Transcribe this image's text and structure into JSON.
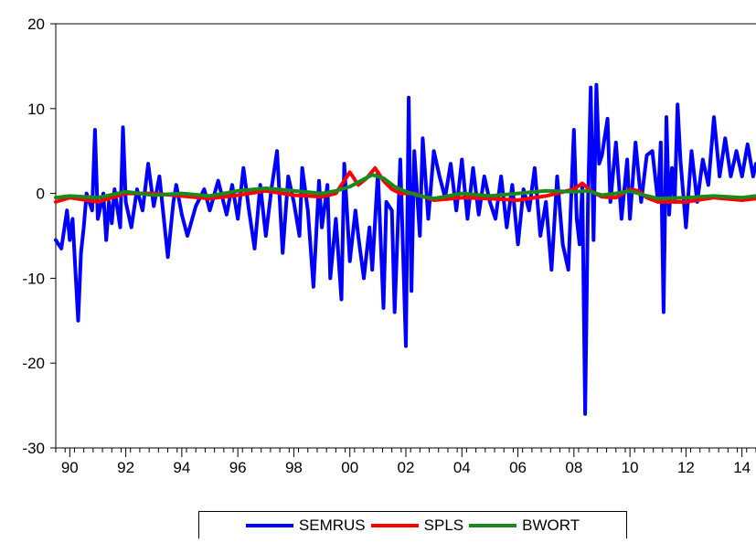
{
  "chart_data": {
    "type": "line",
    "title": "",
    "xlabel": "",
    "ylabel": "",
    "xlim": [
      1989.5,
      2014.5
    ],
    "ylim": [
      -30,
      20
    ],
    "y_ticks": [
      20,
      10,
      0,
      -10,
      -20,
      -30
    ],
    "y_tick_labels": [
      "20",
      "10",
      "0",
      "-10",
      "-20",
      "-30"
    ],
    "x_ticks": [
      1990,
      1992,
      1994,
      1996,
      1998,
      2000,
      2002,
      2004,
      2006,
      2008,
      2010,
      2012,
      2014
    ],
    "x_tick_labels": [
      "90",
      "92",
      "94",
      "96",
      "98",
      "00",
      "02",
      "04",
      "06",
      "08",
      "10",
      "12",
      "14"
    ],
    "grid": false,
    "legend_position": "bottom",
    "series": [
      {
        "name": "SEMRUS",
        "color": "#0000ff",
        "x": [
          1989.5,
          1989.7,
          1989.9,
          1990.0,
          1990.1,
          1990.3,
          1990.4,
          1990.5,
          1990.6,
          1990.8,
          1990.9,
          1991.0,
          1991.2,
          1991.3,
          1991.4,
          1991.5,
          1991.6,
          1991.8,
          1991.9,
          1992.0,
          1992.2,
          1992.4,
          1992.6,
          1992.8,
          1993.0,
          1993.2,
          1993.5,
          1993.7,
          1993.8,
          1994.0,
          1994.2,
          1994.5,
          1994.8,
          1995.0,
          1995.3,
          1995.6,
          1995.8,
          1996.0,
          1996.2,
          1996.4,
          1996.6,
          1996.8,
          1997.0,
          1997.2,
          1997.4,
          1997.6,
          1997.8,
          1998.0,
          1998.2,
          1998.3,
          1998.5,
          1998.7,
          1998.9,
          1999.0,
          1999.2,
          1999.3,
          1999.5,
          1999.7,
          1999.8,
          2000.0,
          2000.2,
          2000.3,
          2000.5,
          2000.7,
          2000.8,
          2001.0,
          2001.2,
          2001.3,
          2001.5,
          2001.6,
          2001.8,
          2002.0,
          2002.1,
          2002.2,
          2002.3,
          2002.5,
          2002.6,
          2002.8,
          2003.0,
          2003.2,
          2003.4,
          2003.6,
          2003.8,
          2004.0,
          2004.2,
          2004.4,
          2004.6,
          2004.8,
          2005.0,
          2005.2,
          2005.4,
          2005.6,
          2005.8,
          2006.0,
          2006.2,
          2006.4,
          2006.6,
          2006.8,
          2007.0,
          2007.2,
          2007.4,
          2007.6,
          2007.8,
          2008.0,
          2008.1,
          2008.2,
          2008.3,
          2008.4,
          2008.5,
          2008.6,
          2008.7,
          2008.8,
          2008.9,
          2009.0,
          2009.2,
          2009.3,
          2009.5,
          2009.7,
          2009.9,
          2010.0,
          2010.2,
          2010.4,
          2010.6,
          2010.8,
          2011.0,
          2011.1,
          2011.2,
          2011.3,
          2011.4,
          2011.5,
          2011.6,
          2011.7,
          2011.8,
          2012.0,
          2012.2,
          2012.4,
          2012.6,
          2012.8,
          2013.0,
          2013.2,
          2013.4,
          2013.6,
          2013.8,
          2014.0,
          2014.2,
          2014.4,
          2014.5
        ],
        "values": [
          -5.5,
          -6.5,
          -2.0,
          -5.5,
          -3.0,
          -15.0,
          -7.0,
          -4.0,
          0.0,
          -2.0,
          7.5,
          -3.0,
          0.0,
          -5.5,
          -1.0,
          -3.5,
          0.5,
          -4.0,
          7.8,
          -1.0,
          -4.0,
          0.5,
          -2.0,
          3.5,
          -1.5,
          2.0,
          -7.5,
          -1.0,
          1.0,
          -2.5,
          -5.0,
          -1.5,
          0.5,
          -2.0,
          1.5,
          -2.5,
          1.0,
          -3.0,
          3.0,
          -2.0,
          -6.5,
          1.0,
          -5.0,
          0.5,
          5.0,
          -7.0,
          2.0,
          -1.0,
          -5.0,
          3.0,
          -2.0,
          -11.0,
          1.5,
          -4.0,
          1.0,
          -10.0,
          -3.0,
          -12.5,
          3.5,
          -8.0,
          -2.0,
          -5.0,
          -10.0,
          -4.0,
          -9.0,
          2.5,
          -13.5,
          -1.0,
          -2.0,
          -14.0,
          4.0,
          -18.0,
          11.3,
          -11.5,
          5.0,
          -5.0,
          6.5,
          -3.0,
          5.0,
          2.0,
          -0.5,
          3.5,
          -2.0,
          4.0,
          -3.0,
          3.0,
          -2.5,
          2.0,
          -1.0,
          -3.0,
          2.0,
          -4.0,
          1.0,
          -6.0,
          0.5,
          -2.0,
          3.0,
          -5.0,
          -1.0,
          -9.0,
          2.0,
          -6.0,
          -9.0,
          7.5,
          -3.0,
          -6.0,
          1.0,
          -26.0,
          -1.0,
          12.5,
          -5.5,
          12.8,
          3.5,
          4.5,
          8.8,
          -1.0,
          6.0,
          -3.0,
          4.0,
          -3.0,
          6.0,
          -1.0,
          4.5,
          5.0,
          -1.0,
          6.0,
          -14.0,
          9.0,
          -2.5,
          3.0,
          -1.0,
          10.5,
          4.0,
          -4.0,
          5.0,
          -1.0,
          4.0,
          1.0,
          9.0,
          2.0,
          6.5,
          2.0,
          5.0,
          2.0,
          5.8,
          2.0,
          3.5
        ]
      },
      {
        "name": "SPLS",
        "color": "#ff0000",
        "x": [
          1989.5,
          1990.0,
          1991.0,
          1992.0,
          1993.0,
          1994.0,
          1995.0,
          1996.0,
          1997.0,
          1998.0,
          1999.0,
          1999.5,
          2000.0,
          2000.3,
          2000.6,
          2000.9,
          2001.2,
          2001.5,
          2001.8,
          2002.3,
          2003.0,
          2004.0,
          2005.0,
          2006.0,
          2007.0,
          2008.0,
          2008.3,
          2008.6,
          2009.0,
          2009.5,
          2010.0,
          2010.3,
          2010.6,
          2011.0,
          2012.0,
          2013.0,
          2014.0,
          2014.5
        ],
        "values": [
          -1.0,
          -0.5,
          -1.0,
          0.0,
          0.0,
          -0.3,
          -0.6,
          -0.2,
          0.3,
          -0.2,
          -0.4,
          0.0,
          2.5,
          1.0,
          1.8,
          3.0,
          1.5,
          0.5,
          0.0,
          0.0,
          -0.8,
          -0.5,
          -0.6,
          -0.8,
          -0.3,
          0.5,
          1.2,
          0.3,
          -0.4,
          -0.5,
          0.5,
          0.3,
          -0.5,
          -1.0,
          -1.0,
          -0.5,
          -0.8,
          -0.6
        ]
      },
      {
        "name": "BWORT",
        "color": "#1a8a1a",
        "x": [
          1989.5,
          1990.0,
          1991.0,
          1992.0,
          1993.0,
          1994.0,
          1995.0,
          1996.0,
          1997.0,
          1998.0,
          1999.0,
          1999.5,
          2000.0,
          2000.4,
          2000.8,
          2001.2,
          2001.6,
          2002.0,
          2002.5,
          2003.0,
          2004.0,
          2005.0,
          2006.0,
          2007.0,
          2008.0,
          2008.5,
          2009.0,
          2009.5,
          2010.0,
          2010.5,
          2011.0,
          2012.0,
          2013.0,
          2014.0,
          2014.5
        ],
        "values": [
          -0.5,
          -0.3,
          -0.5,
          0.2,
          -0.2,
          0.0,
          -0.3,
          0.3,
          0.6,
          0.3,
          0.0,
          0.3,
          0.8,
          1.5,
          2.2,
          1.8,
          0.8,
          0.2,
          -0.3,
          -0.6,
          0.0,
          -0.3,
          0.0,
          0.3,
          0.2,
          0.3,
          -0.2,
          0.0,
          0.3,
          -0.2,
          -0.6,
          -0.5,
          -0.3,
          -0.5,
          -0.3
        ]
      }
    ]
  }
}
